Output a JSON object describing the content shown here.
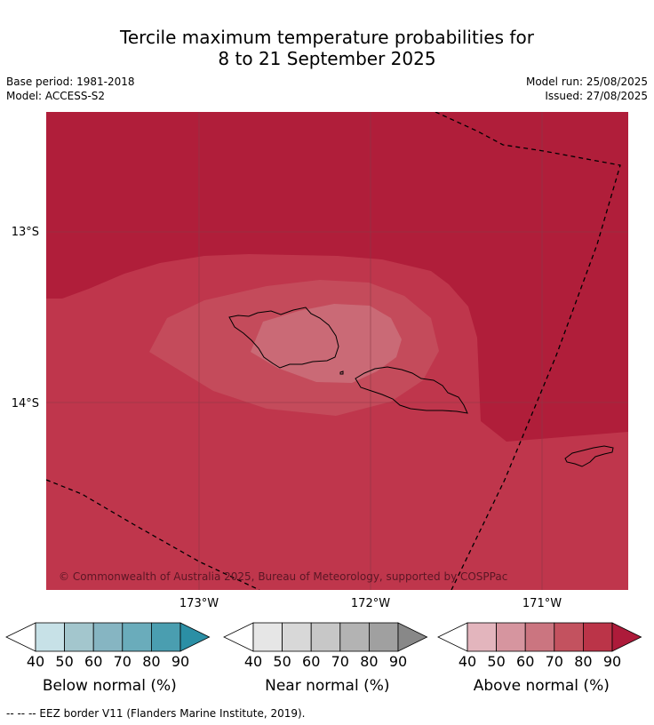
{
  "title_line1": "Tercile maximum temperature probabilities for",
  "title_line2": "8 to 21 September 2025",
  "base_period": "Base period: 1981-2018",
  "model": "Model: ACCESS-S2",
  "model_run": "Model run: 25/08/2025",
  "issued": "Issued: 27/08/2025",
  "map": {
    "lat_labels": [
      "13°S",
      "14°S"
    ],
    "lon_labels": [
      "173°W",
      "172°W",
      "171°W"
    ],
    "copyright": "© Commonwealth of Australia 2025, Bureau of Meteorology, supported by COSPPac"
  },
  "legends": [
    {
      "label": "Below normal (%)",
      "ticks": [
        "40",
        "50",
        "60",
        "70",
        "80",
        "90"
      ],
      "colors": [
        "#c7e1e7",
        "#a3c6cd",
        "#86b5c2",
        "#6aacbb",
        "#4a9eb0",
        "#2b8fa5"
      ]
    },
    {
      "label": "Near normal (%)",
      "ticks": [
        "40",
        "50",
        "60",
        "70",
        "80",
        "90"
      ],
      "colors": [
        "#e6e6e6",
        "#d8d8d8",
        "#c7c7c7",
        "#b3b3b3",
        "#a0a0a0",
        "#888888"
      ]
    },
    {
      "label": "Above normal (%)",
      "ticks": [
        "40",
        "50",
        "60",
        "70",
        "80",
        "90"
      ],
      "colors": [
        "#e3b5bd",
        "#d6959f",
        "#cb7580",
        "#c3525f",
        "#bb3448",
        "#ad1b3a"
      ]
    }
  ],
  "eez_note": "-- -- -- EEZ border V11 (Flanders Marine Institute, 2019)."
}
